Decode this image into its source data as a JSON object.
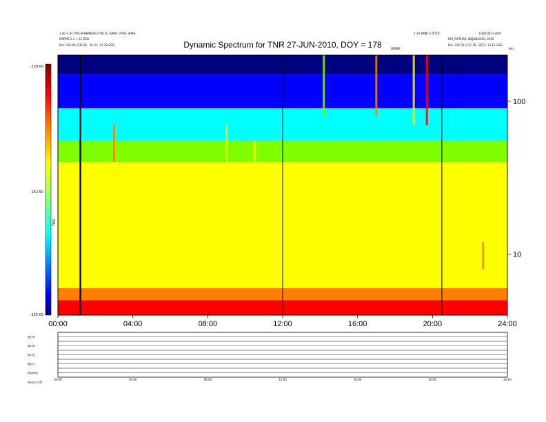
{
  "title": "Dynamic Spectrum for TNR 27-JUN-2010, DOY = 178",
  "header": {
    "left_line1": "1.00 + SC POS EPHEMERIS (TOE SC (EPH): 0 RSC (EPH)",
    "left_line2": "MSPPIS 2.3 + SC RCD",
    "left_line3": "Pos:     235.00 (235.95, -91.23, 13.78 GSE)",
    "right_line1": "LOBT:0011+001",
    "right_line2": "RIG_PICTURE: 08/JUN/2010; 2010",
    "right_line3": "Pos:    235.53 (237.76, -9271, 13.13 GSE)",
    "center_right": "1.10 WIND 2.0/TOC",
    "event_label": "DENSE",
    "khz_label": "kHz"
  },
  "colorbar": {
    "max_label": "-130.00",
    "mid_label": "-142.50",
    "min_label": "-155.00",
    "side_label": "TNR",
    "colors": [
      "#800000",
      "#ff0000",
      "#ff8000",
      "#ffff00",
      "#80ff80",
      "#00ffff",
      "#0080ff",
      "#0000ff",
      "#000080"
    ]
  },
  "bottom_strip": {
    "row_labels": [
      "B(nT)",
      "B(nT)",
      "B(nT)",
      "N(cc)",
      "V(km/s)"
    ],
    "time_label": "Hours (UT)",
    "scale_ticks": [
      "00:00",
      "04:00",
      "08:00",
      "12:00",
      "16:00",
      "20:00",
      "24:00"
    ]
  },
  "chart_data": {
    "type": "heatmap",
    "title": "Dynamic Spectrum for TNR 27-JUN-2010, DOY = 178",
    "xlabel": "",
    "ylabel": "kHz",
    "x_unit": "UT hours",
    "xlim": [
      0,
      24
    ],
    "ylim_khz": [
      4,
      200
    ],
    "y_scale": "log",
    "x_ticks": [
      "00:00",
      "04:00",
      "08:00",
      "12:00",
      "16:00",
      "20:00",
      "24:00"
    ],
    "y_ticks": [
      {
        "value": 10,
        "label": "10"
      },
      {
        "value": 100,
        "label": "100"
      }
    ],
    "colorbar_range_db": [
      -155,
      -130
    ],
    "colorbar_ticks": [
      "-130.00",
      "-142.50",
      "-155.00"
    ],
    "grid": false,
    "legend": "colorbar-left",
    "markers_ut_hours": [
      1.2,
      12.0,
      20.5
    ],
    "colors": {
      "band_top": "#000080",
      "band_upper": "#0000ff",
      "band_cyan": "#00ffff",
      "band_green": "#80ff00",
      "band_yellow": "#ffff00",
      "band_orange": "#ff8000",
      "band_red": "#ff0000"
    }
  }
}
